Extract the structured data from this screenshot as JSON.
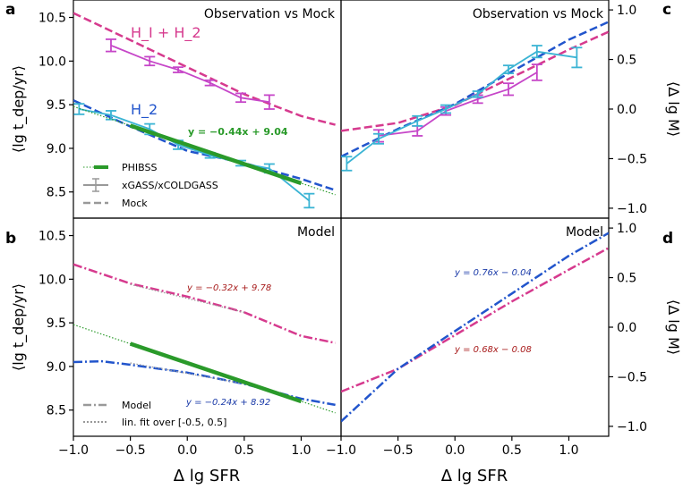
{
  "figure": {
    "x_label": "Δ lg SFR",
    "left_y_label": "⟨lg t_dep/yr⟩",
    "right_y_label": "⟨Δ lg M⟩"
  },
  "colors": {
    "hi_h2": "#d63a8e",
    "h2": "#2255cc",
    "obs_hi": "#c646c8",
    "obs_h2": "#3bb4d4",
    "phibss": "#2a9a2a",
    "fit_text_red": "#a81c1c",
    "fit_text_blue": "#1a3aa8",
    "gray": "#999999"
  },
  "chart_data": [
    {
      "panel": "a",
      "type": "line",
      "title": "Observation vs Mock",
      "xlim": [
        -1.0,
        1.35
      ],
      "ylim": [
        8.2,
        10.7
      ],
      "yticks": [
        8.5,
        9.0,
        9.5,
        10.0,
        10.5
      ],
      "ylabel": "⟨lg t_dep/yr⟩",
      "series": [
        {
          "name": "H_I + H_2 Mock",
          "style": "dashed",
          "color_key": "hi_h2",
          "x": [
            -1.0,
            -0.5,
            0.0,
            0.5,
            1.0,
            1.3
          ],
          "y": [
            10.55,
            10.24,
            9.93,
            9.62,
            9.37,
            9.27
          ]
        },
        {
          "name": "H_I + H_2 xGASS/xCOLDGASS",
          "style": "errorbar",
          "color_key": "obs_hi",
          "x": [
            -0.67,
            -0.33,
            -0.08,
            0.2,
            0.47,
            0.72
          ],
          "y": [
            10.18,
            10.0,
            9.9,
            9.75,
            9.58,
            9.53
          ],
          "err": [
            0.07,
            0.05,
            0.03,
            0.03,
            0.05,
            0.08
          ]
        },
        {
          "name": "H_2 Mock",
          "style": "dashed",
          "color_key": "h2",
          "x": [
            -1.0,
            -0.5,
            0.0,
            0.5,
            1.0,
            1.3
          ],
          "y": [
            9.55,
            9.25,
            8.97,
            8.83,
            8.65,
            8.52
          ]
        },
        {
          "name": "H_2 xGASS/xCOLDGASS",
          "style": "errorbar",
          "color_key": "obs_h2",
          "x": [
            -0.95,
            -0.67,
            -0.33,
            -0.08,
            0.2,
            0.47,
            0.72,
            1.07
          ],
          "y": [
            9.45,
            9.38,
            9.22,
            9.04,
            8.92,
            8.83,
            8.77,
            8.4
          ],
          "err": [
            0.06,
            0.05,
            0.06,
            0.05,
            0.03,
            0.03,
            0.05,
            0.08
          ]
        },
        {
          "name": "PHIBSS fit",
          "style": "thick",
          "color_key": "phibss",
          "x": [
            -0.5,
            1.0
          ],
          "y": [
            9.26,
            8.6
          ]
        },
        {
          "name": "PHIBSS extrapolation",
          "style": "dotted",
          "color_key": "phibss",
          "x": [
            -1.0,
            1.3
          ],
          "y": [
            9.48,
            8.468
          ]
        }
      ],
      "annotations": {
        "hi_h2_label": "H_I + H_2",
        "h2_label": "H_2",
        "fit": "y = −0.44x + 9.04"
      },
      "legend": {
        "placement": "lower-left",
        "entries": [
          "PHIBSS",
          "xGASS/xCOLDGASS",
          "Mock"
        ]
      }
    },
    {
      "panel": "c",
      "type": "line",
      "title": "Observation vs Mock",
      "xlim": [
        -1.0,
        1.35
      ],
      "ylim": [
        -1.1,
        1.1
      ],
      "yticks": [
        -1.0,
        -0.5,
        0.0,
        0.5,
        1.0
      ],
      "ylabel": "⟨Δ lg M⟩",
      "series": [
        {
          "name": "H_I + H_2 Mock",
          "style": "dashed",
          "color_key": "hi_h2",
          "x": [
            -1.0,
            -0.5,
            0.0,
            0.5,
            1.0,
            1.35
          ],
          "y": [
            -0.22,
            -0.14,
            0.04,
            0.32,
            0.6,
            0.78
          ]
        },
        {
          "name": "H_2 Mock",
          "style": "dashed",
          "color_key": "h2",
          "x": [
            -1.0,
            -0.5,
            0.0,
            0.5,
            1.0,
            1.35
          ],
          "y": [
            -0.48,
            -0.2,
            0.05,
            0.38,
            0.7,
            0.88
          ]
        },
        {
          "name": "H_I + H_2 xGASS/xCOLDGASS",
          "style": "errorbar",
          "color_key": "obs_hi",
          "x": [
            -0.67,
            -0.33,
            -0.08,
            0.2,
            0.47,
            0.72
          ],
          "y": [
            -0.27,
            -0.22,
            -0.02,
            0.1,
            0.2,
            0.37
          ],
          "err": [
            0.06,
            0.05,
            0.04,
            0.04,
            0.06,
            0.08
          ]
        },
        {
          "name": "H_2 xGASS/xCOLDGASS",
          "style": "errorbar",
          "color_key": "obs_h2",
          "x": [
            -0.95,
            -0.67,
            -0.33,
            -0.08,
            0.2,
            0.47,
            0.72,
            1.07
          ],
          "y": [
            -0.55,
            -0.3,
            -0.12,
            0.0,
            0.15,
            0.4,
            0.58,
            0.52
          ],
          "err": [
            0.07,
            0.05,
            0.05,
            0.04,
            0.03,
            0.04,
            0.06,
            0.1
          ]
        }
      ]
    },
    {
      "panel": "b",
      "type": "line",
      "title": "Model",
      "xlim": [
        -1.0,
        1.35
      ],
      "ylim": [
        8.2,
        10.7
      ],
      "yticks": [
        8.5,
        9.0,
        9.5,
        10.0,
        10.5
      ],
      "ylabel": "⟨lg t_dep/yr⟩",
      "series": [
        {
          "name": "H_I + H_2 Model",
          "style": "dashdot",
          "color_key": "hi_h2",
          "x": [
            -1.0,
            -0.5,
            0.0,
            0.5,
            1.0,
            1.3
          ],
          "y": [
            10.17,
            9.95,
            9.8,
            9.62,
            9.35,
            9.27
          ]
        },
        {
          "name": "H_I + H_2 lin. fit",
          "style": "dotted",
          "color_key": "gray",
          "x": [
            -0.5,
            0.5
          ],
          "y": [
            9.94,
            9.62
          ]
        },
        {
          "name": "H_2 Model",
          "style": "dashdot",
          "color_key": "h2",
          "x": [
            -1.0,
            -0.75,
            -0.5,
            0.0,
            0.5,
            1.0,
            1.3
          ],
          "y": [
            9.05,
            9.06,
            9.02,
            8.93,
            8.8,
            8.63,
            8.56
          ]
        },
        {
          "name": "H_2 lin. fit",
          "style": "dotted",
          "color_key": "gray",
          "x": [
            -0.5,
            0.5
          ],
          "y": [
            9.04,
            8.8
          ]
        },
        {
          "name": "PHIBSS fit",
          "style": "thick",
          "color_key": "phibss",
          "x": [
            -0.5,
            1.0
          ],
          "y": [
            9.26,
            8.6
          ]
        },
        {
          "name": "PHIBSS extrapolation",
          "style": "dotted",
          "color_key": "phibss",
          "x": [
            -1.0,
            1.3
          ],
          "y": [
            9.48,
            8.468
          ]
        }
      ],
      "annotations": {
        "fit_red": "y = −0.32x + 9.78",
        "fit_blue": "y = −0.24x + 8.92"
      },
      "legend": {
        "placement": "lower-left",
        "entries": [
          "Model",
          "lin. fit over [-0.5, 0.5]"
        ]
      },
      "xticks": [
        -1.0,
        -0.5,
        0.0,
        0.5,
        1.0
      ],
      "xlabel": "Δ lg SFR"
    },
    {
      "panel": "d",
      "type": "line",
      "title": "Model",
      "xlim": [
        -1.0,
        1.35
      ],
      "ylim": [
        -1.1,
        1.1
      ],
      "yticks": [
        -1.0,
        -0.5,
        0.0,
        0.5,
        1.0
      ],
      "ylabel": "⟨Δ lg M⟩",
      "series": [
        {
          "name": "H_I + H_2 Model",
          "style": "dashdot",
          "color_key": "hi_h2",
          "x": [
            -1.0,
            -0.5,
            0.0,
            0.5,
            1.0,
            1.35
          ],
          "y": [
            -0.65,
            -0.42,
            -0.08,
            0.26,
            0.58,
            0.8
          ]
        },
        {
          "name": "H_2 Model",
          "style": "dashdot",
          "color_key": "h2",
          "x": [
            -1.0,
            -0.5,
            0.0,
            0.5,
            1.0,
            1.35
          ],
          "y": [
            -0.95,
            -0.42,
            -0.04,
            0.34,
            0.72,
            0.95
          ]
        }
      ],
      "annotations": {
        "fit_blue": "y = 0.76x − 0.04",
        "fit_red": "y = 0.68x − 0.08"
      },
      "xticks": [
        -1.0,
        -0.5,
        0.0,
        0.5,
        1.0
      ],
      "xlabel": "Δ lg SFR"
    }
  ],
  "panel_letters": [
    "a",
    "b",
    "c",
    "d"
  ]
}
